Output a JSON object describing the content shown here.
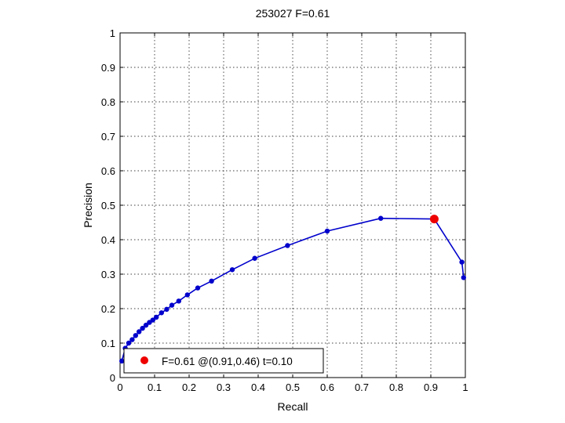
{
  "chart_data": {
    "type": "line",
    "title": "253027 F=0.61",
    "xlabel": "Recall",
    "ylabel": "Precision",
    "xlim": [
      0,
      1
    ],
    "ylim": [
      0,
      1
    ],
    "grid": true,
    "xticks": [
      "0",
      "0.1",
      "0.2",
      "0.3",
      "0.4",
      "0.5",
      "0.6",
      "0.7",
      "0.8",
      "0.9",
      "1"
    ],
    "yticks": [
      "0",
      "0.1",
      "0.2",
      "0.3",
      "0.4",
      "0.5",
      "0.6",
      "0.7",
      "0.8",
      "0.9",
      "1"
    ],
    "series": [
      {
        "color": "#0000cc",
        "x": [
          0.995,
          0.99,
          0.91,
          0.755,
          0.6,
          0.485,
          0.39,
          0.325,
          0.265,
          0.225,
          0.195,
          0.17,
          0.15,
          0.135,
          0.12,
          0.105,
          0.095,
          0.085,
          0.075,
          0.065,
          0.055,
          0.045,
          0.035,
          0.025,
          0.015,
          0.005
        ],
        "y": [
          0.29,
          0.335,
          0.46,
          0.462,
          0.425,
          0.383,
          0.346,
          0.313,
          0.28,
          0.26,
          0.24,
          0.222,
          0.21,
          0.198,
          0.188,
          0.175,
          0.167,
          0.16,
          0.152,
          0.143,
          0.133,
          0.122,
          0.11,
          0.1,
          0.085,
          0.048
        ]
      }
    ],
    "highlight": {
      "x": 0.91,
      "y": 0.46,
      "color": "#ee0000"
    },
    "legend": {
      "position": "bottom-left",
      "label": "F=0.61 @(0.91,0.46) t=0.10",
      "marker_color": "#ee0000"
    }
  }
}
